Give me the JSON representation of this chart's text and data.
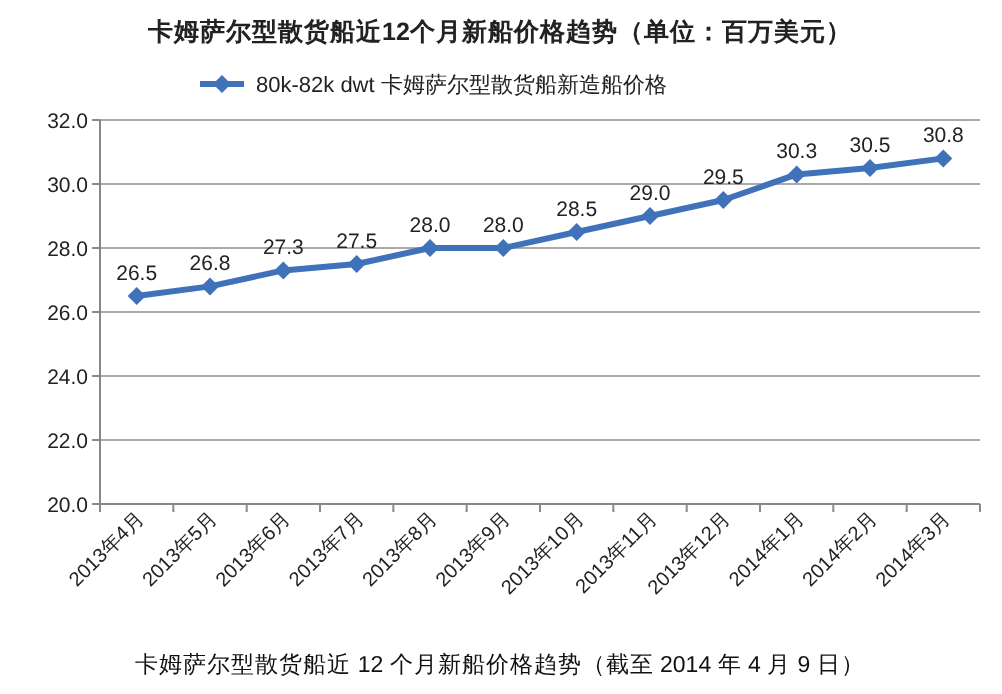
{
  "chart_data": {
    "type": "line",
    "title": "卡姆萨尔型散货船近12个月新船价格趋势（单位：百万美元）",
    "categories": [
      "2013年4月",
      "2013年5月",
      "2013年6月",
      "2013年7月",
      "2013年8月",
      "2013年9月",
      "2013年10月",
      "2013年11月",
      "2013年12月",
      "2014年1月",
      "2014年2月",
      "2014年3月"
    ],
    "series": [
      {
        "name": "80k-82k dwt 卡姆萨尔型散货船新造船价格",
        "color": "#3f72b8",
        "values": [
          26.5,
          26.8,
          27.3,
          27.5,
          28.0,
          28.0,
          28.5,
          29.0,
          29.5,
          30.3,
          30.5,
          30.8
        ],
        "value_labels": [
          "26.5",
          "26.8",
          "27.3",
          "27.5",
          "28.0",
          "28.0",
          "28.5",
          "29.0",
          "29.5",
          "30.3",
          "30.5",
          "30.8"
        ]
      }
    ],
    "ylim": [
      20,
      32
    ],
    "yticks": [
      {
        "value": 20,
        "label": "20.0"
      },
      {
        "value": 22,
        "label": "22.0"
      },
      {
        "value": 24,
        "label": "24.0"
      },
      {
        "value": 26,
        "label": "26.0"
      },
      {
        "value": 28,
        "label": "28.0"
      },
      {
        "value": 30,
        "label": "30.0"
      },
      {
        "value": 32,
        "label": "32.0"
      }
    ],
    "grid": "y",
    "legend": "top",
    "marker": "diamond",
    "line_style": "solid",
    "annotations": [
      "卡姆萨尔型散货船近 12 个月新船价格趋势（截至 2014 年 4 月 9 日）"
    ]
  }
}
